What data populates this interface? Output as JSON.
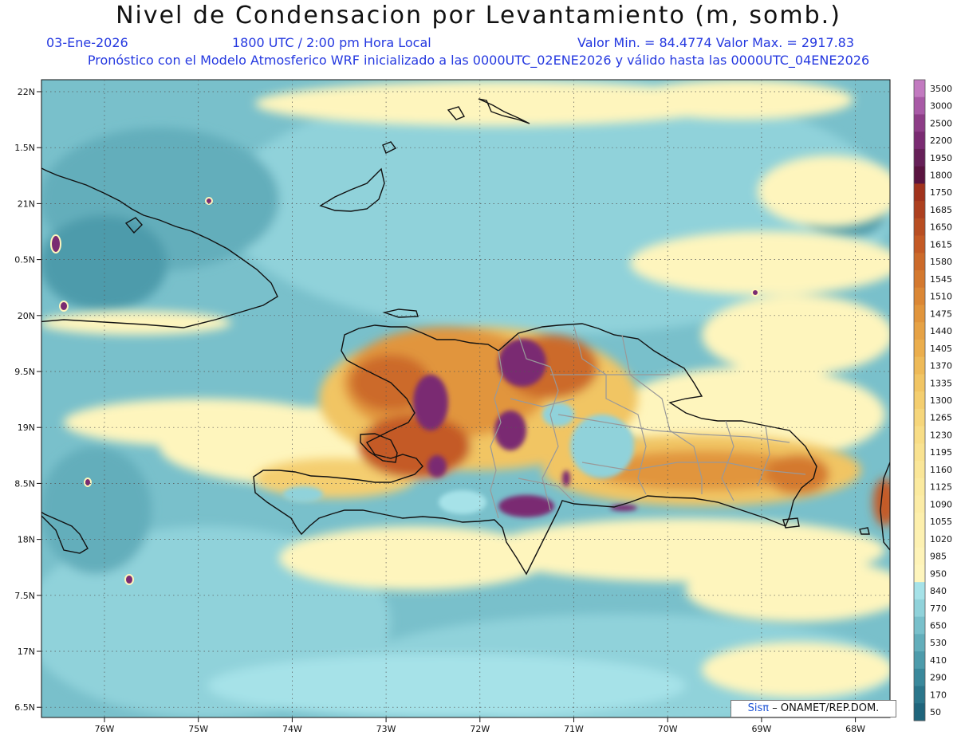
{
  "header": {
    "title": "Nivel de Condensacion por Levantamiento (m, somb.)",
    "date": "03-Ene-2026",
    "time": "1800 UTC / 2:00 pm Hora Local",
    "range": "Valor Min. = 84.4774   Valor Max. = 2917.83",
    "model_info": "Pronóstico con el Modelo Atmosferico WRF inicializado a las 0000UTC_02ENE2026 y válido hasta las  0000UTC_04ENE2026"
  },
  "axes": {
    "lat_labels": [
      "22N",
      "1.5N",
      "21N",
      "0.5N",
      "20N",
      "9.5N",
      "19N",
      "8.5N",
      "18N",
      "7.5N",
      "17N",
      "6.5N"
    ],
    "lon_labels": [
      "76W",
      "75W",
      "74W",
      "73W",
      "72W",
      "71W",
      "70W",
      "69W",
      "68W"
    ]
  },
  "legend": {
    "levels": [
      "3500",
      "3000",
      "2500",
      "2200",
      "1950",
      "1800",
      "1750",
      "1685",
      "1650",
      "1615",
      "1580",
      "1545",
      "1510",
      "1475",
      "1440",
      "1405",
      "1370",
      "1335",
      "1300",
      "1265",
      "1230",
      "1195",
      "1160",
      "1125",
      "1090",
      "1055",
      "1020",
      "985",
      "950",
      "840",
      "770",
      "650",
      "530",
      "410",
      "290",
      "170",
      "50"
    ],
    "colors": [
      "#c27ac0",
      "#a85aa6",
      "#8d3d87",
      "#7a2b72",
      "#662058",
      "#5a1440",
      "#a1331d",
      "#ad401f",
      "#b84e22",
      "#c45a25",
      "#cc6a2a",
      "#d4792f",
      "#db8735",
      "#e1953c",
      "#e6a245",
      "#ebae4d",
      "#eeba58",
      "#f1c564",
      "#f4ce6f",
      "#f6d67b",
      "#f8dd86",
      "#f9e290",
      "#fae698",
      "#fbea9f",
      "#fcecA6",
      "#fdefac",
      "#fdf1b2",
      "#fef3b8",
      "#fef5bd",
      "#a6e2e8",
      "#90d2da",
      "#79c0cb",
      "#63aebb",
      "#4d9bab",
      "#3a889b",
      "#2b768b",
      "#1f657c"
    ]
  },
  "credit": {
    "sis": "Sisπ",
    "text": "– ONAMET/REP.DOM."
  }
}
